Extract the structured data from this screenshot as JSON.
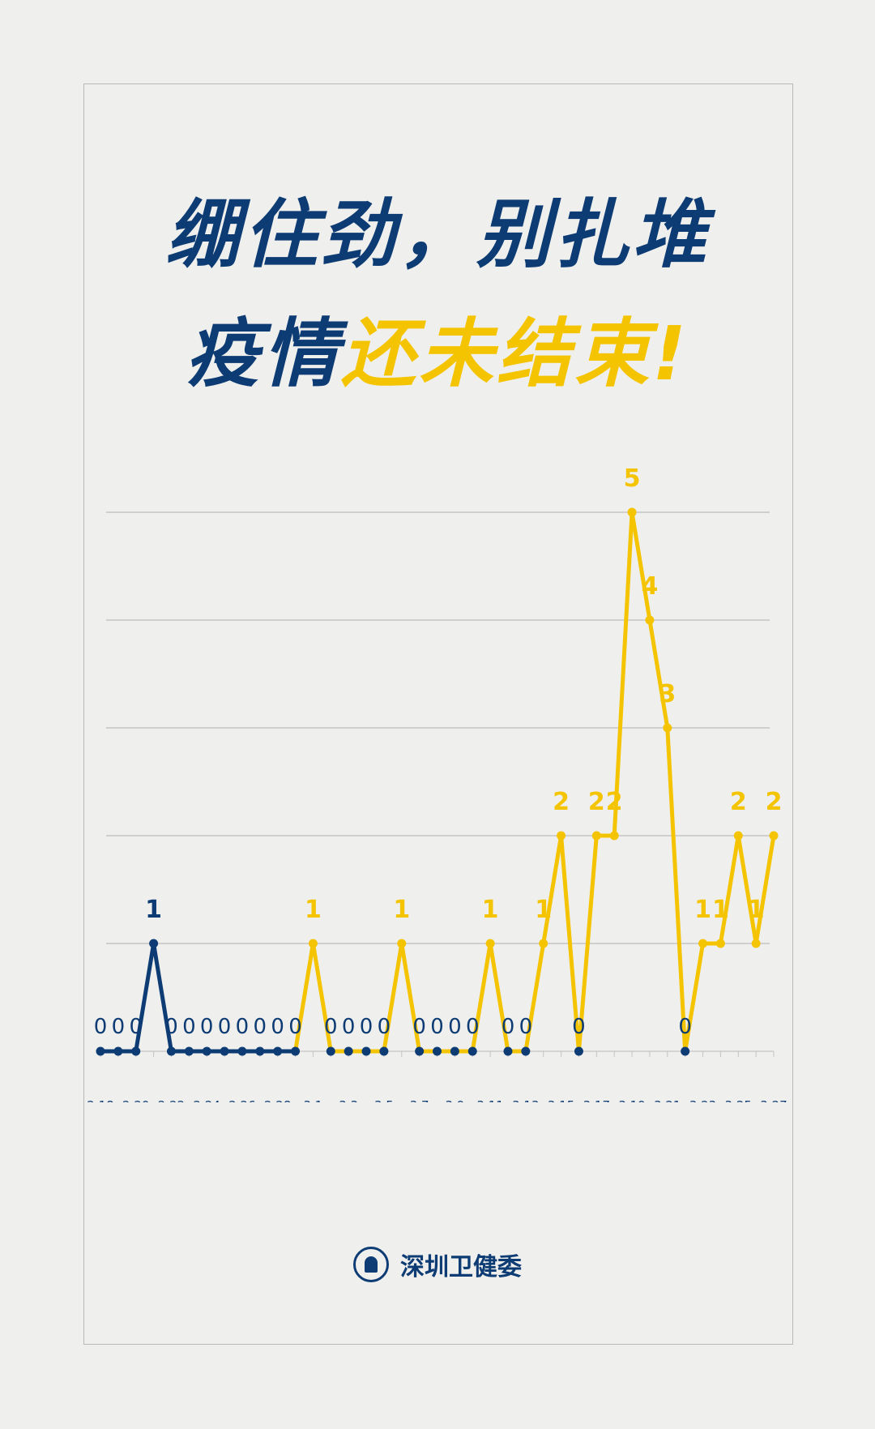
{
  "title": {
    "line1": "绷住劲，别扎堆",
    "line2_blue": "疫情",
    "line2_yellow": "还未结束!"
  },
  "footer": {
    "org": "深圳卫健委",
    "logo_icon": "shenzhen-health-commission-emblem"
  },
  "colors": {
    "blue": "#0d3b73",
    "yellow": "#f5c400"
  },
  "chart_data": {
    "type": "line",
    "title": "",
    "xlabel": "",
    "ylabel": "",
    "ylim": [
      0,
      5
    ],
    "grid": true,
    "tick_labels": [
      "2.18",
      "2.20",
      "2.22",
      "2.24",
      "2.26",
      "2.28",
      "3.1",
      "3.3",
      "3.5",
      "3.7",
      "3.9",
      "3.11",
      "3.13",
      "3.15",
      "3.17",
      "3.19",
      "3.21",
      "3.23",
      "3.25",
      "3.27"
    ],
    "values": [
      0,
      0,
      0,
      1,
      0,
      0,
      0,
      0,
      0,
      0,
      0,
      0,
      1,
      0,
      0,
      0,
      0,
      1,
      0,
      0,
      0,
      0,
      1,
      0,
      0,
      1,
      2,
      0,
      2,
      2,
      5,
      4,
      3,
      0,
      1,
      1,
      2,
      1,
      2
    ],
    "highlight_from_index": 11
  }
}
